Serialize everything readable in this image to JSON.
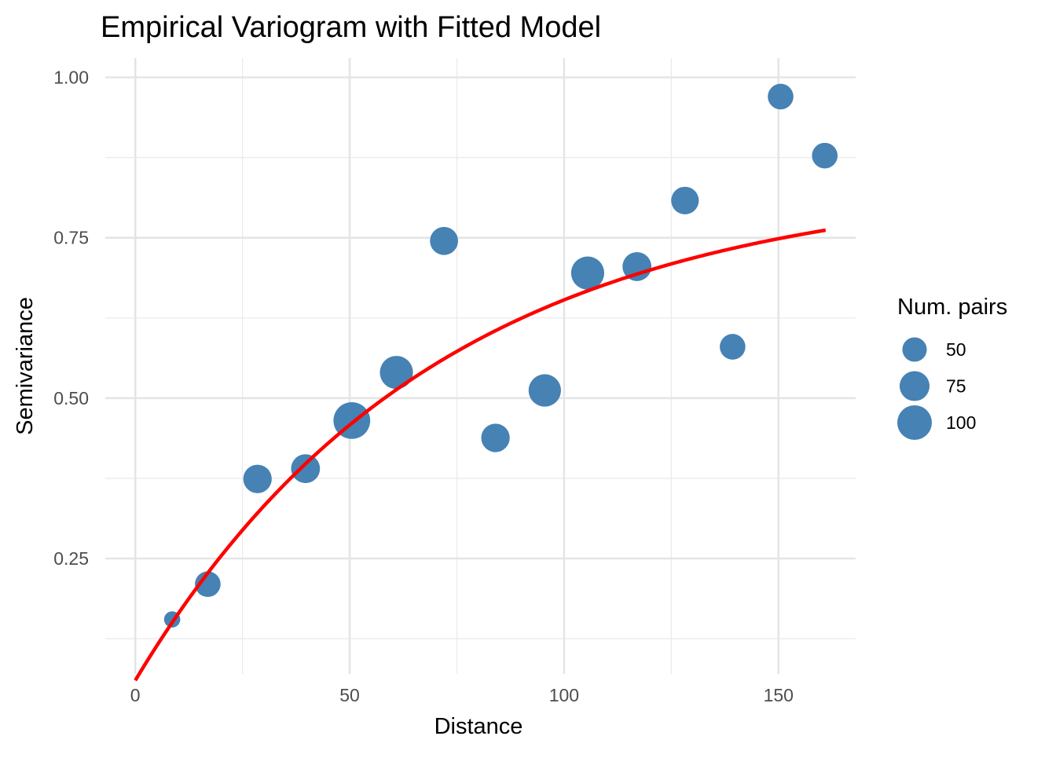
{
  "chart_data": {
    "type": "scatter",
    "title": "Empirical Variogram with Fitted Model",
    "xlabel": "Distance",
    "ylabel": "Semivariance",
    "xlim": [
      -7,
      168
    ],
    "ylim": [
      0.07,
      1.03
    ],
    "x_ticks": [
      0,
      50,
      100,
      150
    ],
    "x_tick_labels": [
      "0",
      "50",
      "100",
      "150"
    ],
    "y_ticks": [
      0.25,
      0.5,
      0.75,
      1.0
    ],
    "y_tick_labels": [
      "0.25",
      "0.50",
      "0.75",
      "1.00"
    ],
    "grid": true,
    "points": {
      "x": [
        8.6,
        16.9,
        28.5,
        39.7,
        50.5,
        60.9,
        72.0,
        84.0,
        95.5,
        105.5,
        117.0,
        128.2,
        139.3,
        150.5,
        160.8
      ],
      "y": [
        0.155,
        0.21,
        0.374,
        0.39,
        0.465,
        0.54,
        0.745,
        0.438,
        0.512,
        0.695,
        0.705,
        0.808,
        0.58,
        0.97,
        0.878
      ],
      "np": [
        22,
        55,
        68,
        70,
        113,
        92,
        66,
        68,
        88,
        92,
        70,
        64,
        55,
        55,
        55
      ],
      "color": "#4682B4"
    },
    "fitted_model": {
      "type": "exponential",
      "nugget": 0.06,
      "psill": 0.78,
      "range": 70,
      "x_range": [
        0,
        161
      ],
      "color": "#FF0000"
    },
    "legend": {
      "title": "Num. pairs",
      "placement": "right",
      "entries": [
        {
          "label": "50",
          "value": 50
        },
        {
          "label": "75",
          "value": 75
        },
        {
          "label": "100",
          "value": 100
        }
      ]
    }
  }
}
